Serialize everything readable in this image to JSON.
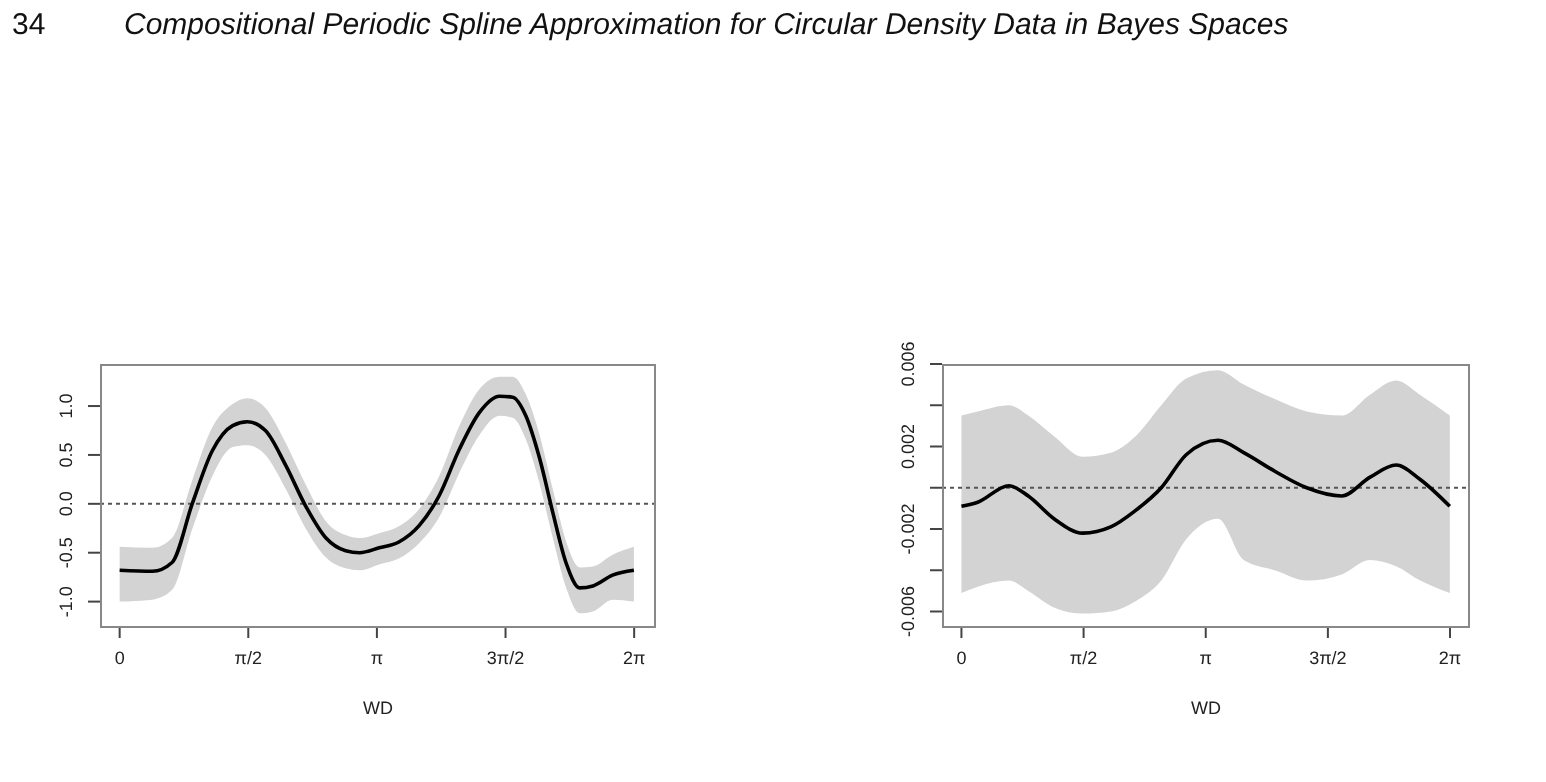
{
  "chart_data": [
    {
      "type": "line",
      "annotations": [
        "34",
        "Compositional Periodic Spline Approximation for Circular Density Data in Bayes Spaces"
      ],
      "xlabel": "WD",
      "x": [
        0,
        0.4,
        0.64,
        0.89,
        1.13,
        1.38,
        1.56,
        1.78,
        2.03,
        2.27,
        2.52,
        2.76,
        2.93,
        3.17,
        3.41,
        3.66,
        3.9,
        4.15,
        4.39,
        4.64,
        4.8,
        4.96,
        5.13,
        5.29,
        5.45,
        5.62,
        5.78,
        6.02,
        6.28
      ],
      "series": [
        {
          "color": "#000000",
          "values": [
            -0.68,
            -0.69,
            -0.6,
            0.01,
            0.54,
            0.8,
            0.84,
            0.75,
            0.39,
            -0.02,
            -0.35,
            -0.48,
            -0.5,
            -0.45,
            -0.39,
            -0.22,
            0.08,
            0.56,
            0.93,
            1.1,
            1.09,
            0.9,
            0.46,
            -0.09,
            -0.6,
            -0.86,
            -0.84,
            -0.73,
            -0.68
          ],
          "upper": [
            -0.44,
            -0.45,
            -0.35,
            0.25,
            0.78,
            1.02,
            1.08,
            0.98,
            0.62,
            0.2,
            -0.18,
            -0.32,
            -0.35,
            -0.3,
            -0.23,
            -0.05,
            0.28,
            0.8,
            1.17,
            1.3,
            1.3,
            1.12,
            0.7,
            0.15,
            -0.38,
            -0.65,
            -0.64,
            -0.52,
            -0.44
          ],
          "lower": [
            -1.0,
            -0.98,
            -0.88,
            -0.25,
            0.28,
            0.58,
            0.6,
            0.5,
            0.15,
            -0.25,
            -0.55,
            -0.66,
            -0.68,
            -0.62,
            -0.56,
            -0.4,
            -0.14,
            0.32,
            0.7,
            0.9,
            0.88,
            0.66,
            0.2,
            -0.35,
            -0.85,
            -1.12,
            -1.1,
            -0.98,
            -1.0
          ]
        }
      ],
      "xlim": [
        -0.24,
        6.55
      ],
      "xticks": [
        0,
        {
          "value": 1.5708,
          "label": "π/2"
        },
        {
          "value": 3.1416,
          "label": "π"
        },
        {
          "value": 4.7124,
          "label": "3π/2"
        },
        {
          "value": 6.2832,
          "label": "2π"
        }
      ],
      "ylim": [
        -1.27,
        1.43
      ],
      "yticks": [
        {
          "value": -1,
          "label": "-1.0"
        },
        {
          "value": -0.5,
          "label": "-0.5"
        },
        {
          "value": 0,
          "label": "0.0"
        },
        {
          "value": 0.5,
          "label": "0.5"
        },
        {
          "value": 1,
          "label": "1.0"
        }
      ],
      "ref_lines": [
        {
          "axis": "y",
          "value": 0,
          "line_style": "dotted",
          "color": "#555555"
        }
      ],
      "grid": false,
      "legend": false,
      "marker": "none",
      "line_style": "solid"
    },
    {
      "type": "line",
      "xlabel": "WD",
      "x": [
        0,
        0.21,
        0.61,
        0.86,
        1.19,
        1.56,
        1.92,
        2.24,
        2.57,
        2.89,
        3.3,
        3.63,
        4.03,
        4.44,
        4.89,
        5.25,
        5.59,
        5.9,
        6.28
      ],
      "series": [
        {
          "color": "#000000",
          "values": [
            -0.0009,
            -0.0007,
            0.0001,
            -0.0004,
            -0.0015,
            -0.0022,
            -0.0019,
            -0.0011,
            0,
            0.0016,
            0.0023,
            0.0017,
            0.0008,
            0,
            -0.0004,
            0.0005,
            0.0011,
            0.0004,
            -0.0009
          ],
          "upper": [
            0.0035,
            0.0037,
            0.004,
            0.0035,
            0.0025,
            0.0015,
            0.0017,
            0.0025,
            0.004,
            0.0053,
            0.0057,
            0.005,
            0.0043,
            0.0037,
            0.0035,
            0.0045,
            0.0052,
            0.0045,
            0.0035
          ],
          "lower": [
            -0.0051,
            -0.0048,
            -0.0045,
            -0.005,
            -0.0058,
            -0.0061,
            -0.006,
            -0.0055,
            -0.0045,
            -0.0025,
            -0.0015,
            -0.0035,
            -0.004,
            -0.0045,
            -0.0042,
            -0.0035,
            -0.0038,
            -0.0045,
            -0.0051
          ]
        }
      ],
      "xlim": [
        -0.25,
        6.54
      ],
      "xticks": [
        0,
        {
          "value": 1.5708,
          "label": "π/2"
        },
        {
          "value": 3.1416,
          "label": "π"
        },
        {
          "value": 4.7124,
          "label": "3π/2"
        },
        {
          "value": 6.2832,
          "label": "2π"
        }
      ],
      "ylim": [
        -0.0068,
        0.006
      ],
      "yticks": [
        -0.006,
        {
          "value": -0.004,
          "label": null
        },
        -0.002,
        {
          "value": 0,
          "label": null
        },
        0.002,
        {
          "value": 0.004,
          "label": null
        },
        0.006
      ],
      "ref_lines": [
        {
          "axis": "y",
          "value": 0,
          "line_style": "dotted",
          "color": "#555555"
        }
      ],
      "grid": false,
      "legend": false,
      "marker": "none",
      "line_style": "solid"
    }
  ]
}
